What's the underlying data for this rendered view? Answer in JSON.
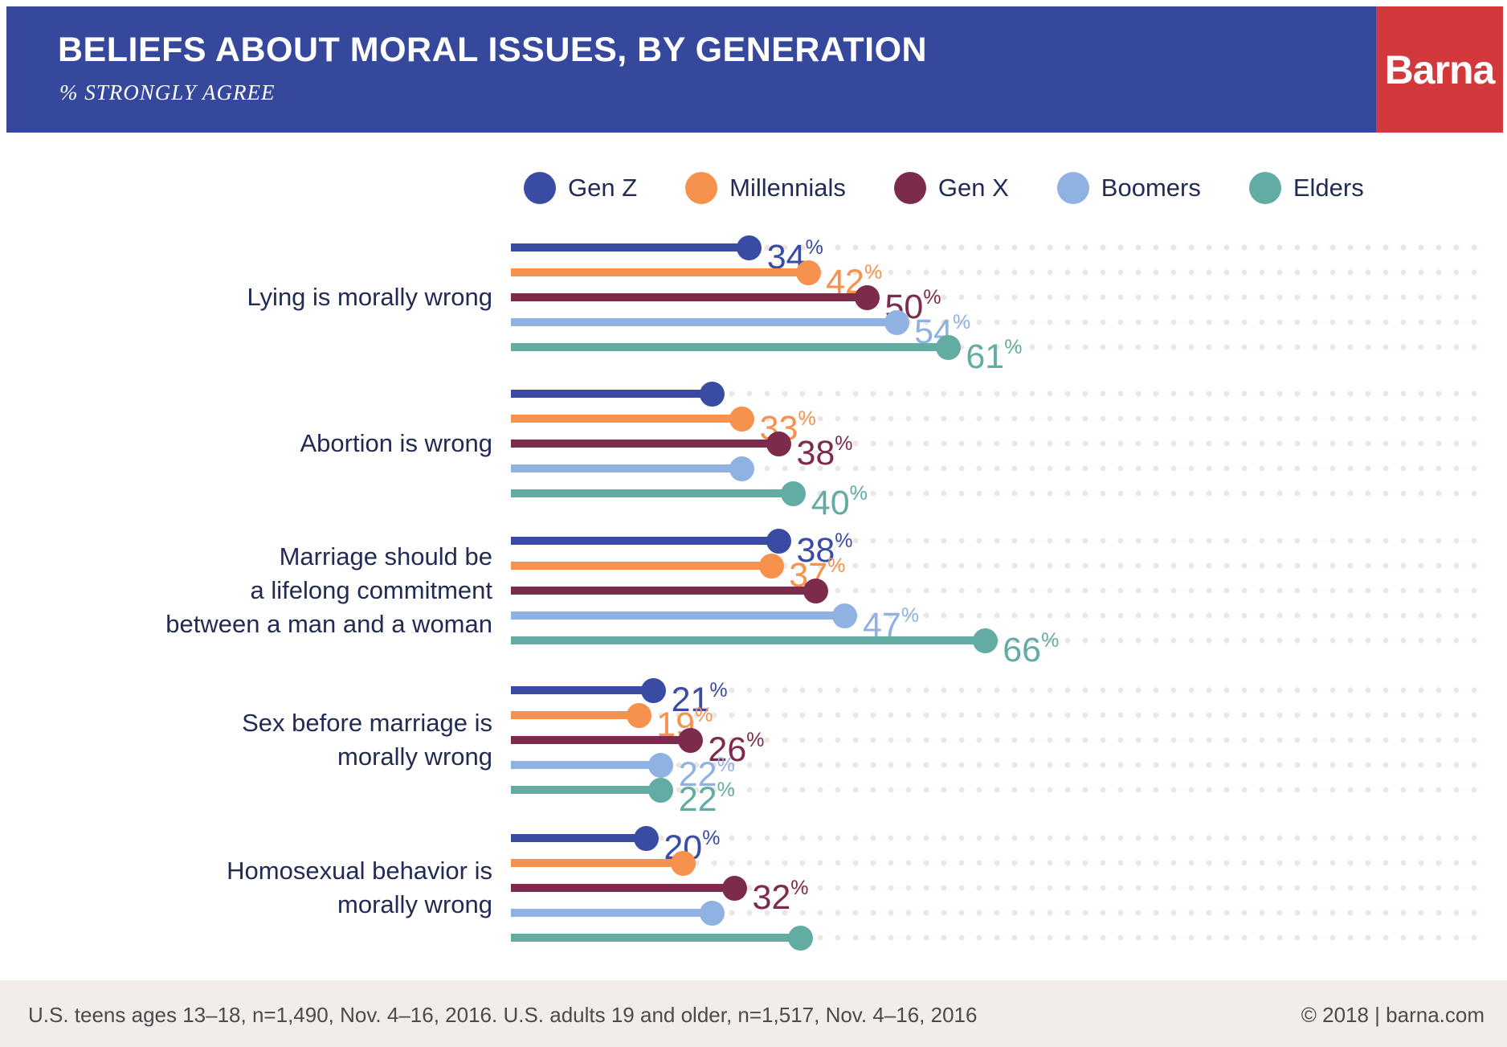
{
  "header": {
    "title": "BELIEFS ABOUT MORAL ISSUES, BY GENERATION",
    "subtitle": "% STRONGLY AGREE",
    "logo": "Barna"
  },
  "legend": {
    "items": [
      {
        "label": "Gen Z",
        "color": "#3A4BA3"
      },
      {
        "label": "Millennials",
        "color": "#F6914E"
      },
      {
        "label": "Gen X",
        "color": "#7D2B4D"
      },
      {
        "label": "Boomers",
        "color": "#90B2E3"
      },
      {
        "label": "Elders",
        "color": "#62ACA4"
      }
    ]
  },
  "chart_data": {
    "type": "bar",
    "variant": "horizontal-lollipop",
    "title": "BELIEFS ABOUT MORAL ISSUES, BY GENERATION",
    "subtitle": "% STRONGLY AGREE",
    "unit": "%",
    "xlim": [
      0,
      75
    ],
    "grid": "dotted-rows",
    "legend_position": "top",
    "series_names": [
      "Gen Z",
      "Millennials",
      "Gen X",
      "Boomers",
      "Elders"
    ],
    "groups": [
      {
        "category": "Lying is morally wrong",
        "label_lines": [
          "Lying is morally wrong"
        ],
        "values": [
          34,
          42,
          50,
          54,
          61
        ],
        "value_labels": [
          "34",
          "42",
          "50",
          "54",
          "61"
        ]
      },
      {
        "category": "Abortion is wrong",
        "label_lines": [
          "Abortion is wrong"
        ],
        "values": [
          29,
          33,
          38,
          33,
          40
        ],
        "value_labels": [
          null,
          "33",
          "38",
          null,
          "40"
        ]
      },
      {
        "category": "Marriage should be a lifelong commitment between a man and a woman",
        "label_lines": [
          "Marriage should be",
          "a lifelong commitment",
          "between a man and a woman"
        ],
        "values": [
          38,
          37,
          43,
          47,
          66
        ],
        "value_labels": [
          "38",
          "37",
          null,
          "47",
          "66"
        ]
      },
      {
        "category": "Sex before marriage is morally wrong",
        "label_lines": [
          "Sex before marriage is",
          "morally wrong"
        ],
        "values": [
          21,
          19,
          26,
          22,
          22
        ],
        "value_labels": [
          "21",
          "19",
          "26",
          "22",
          "22"
        ]
      },
      {
        "category": "Homosexual behavior is morally wrong",
        "label_lines": [
          "Homosexual behavior is",
          "morally wrong"
        ],
        "values": [
          20,
          25,
          32,
          29,
          41
        ],
        "value_labels": [
          "20",
          null,
          "32",
          null,
          null
        ]
      }
    ]
  },
  "footer": {
    "left": "U.S. teens ages 13–18, n=1,490, Nov. 4–16, 2016. U.S. adults 19 and older, n=1,517, Nov. 4–16, 2016",
    "right": "© 2018 | barna.com"
  }
}
